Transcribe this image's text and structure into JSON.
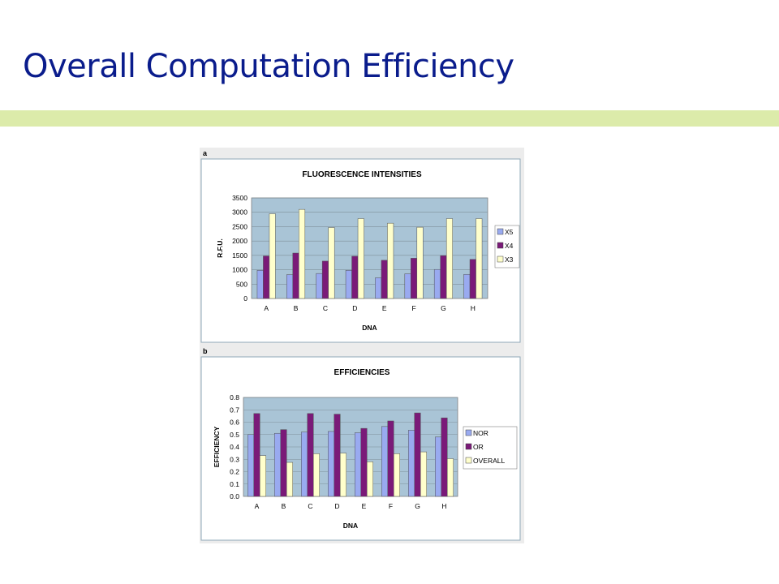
{
  "slide": {
    "title": "Overall Computation Efficiency",
    "title_color": "#0a1c8c",
    "band_color": "#dcebaa"
  },
  "panels": {
    "a": {
      "label": "a"
    },
    "b": {
      "label": "b"
    }
  },
  "chart_data": [
    {
      "type": "bar",
      "panel": "a",
      "title": "FLUORESCENCE INTENSITIES",
      "xlabel": "DNA",
      "ylabel": "R.F.U.",
      "ylim": [
        0,
        3500
      ],
      "yticks": [
        0,
        500,
        1000,
        1500,
        2000,
        2500,
        3000,
        3500
      ],
      "categories": [
        "A",
        "B",
        "C",
        "D",
        "E",
        "F",
        "G",
        "H"
      ],
      "series": [
        {
          "name": "X5",
          "color": "#99aaf0",
          "values": [
            980,
            830,
            870,
            980,
            720,
            860,
            1010,
            840
          ]
        },
        {
          "name": "X4",
          "color": "#7a1a78",
          "values": [
            1480,
            1580,
            1300,
            1470,
            1330,
            1400,
            1490,
            1360
          ]
        },
        {
          "name": "X3",
          "color": "#ffffcc",
          "values": [
            2950,
            3100,
            2470,
            2780,
            2620,
            2480,
            2780,
            2780
          ]
        }
      ],
      "grid": true,
      "legend": "right",
      "plot_bg": "#a9c4d6"
    },
    {
      "type": "bar",
      "panel": "b",
      "title": "EFFICIENCIES",
      "xlabel": "DNA",
      "ylabel": "EFFICIENCY",
      "ylim": [
        0,
        0.8
      ],
      "yticks": [
        0,
        0.1,
        0.2,
        0.3,
        0.4,
        0.5,
        0.6,
        0.7,
        0.8
      ],
      "categories": [
        "A",
        "B",
        "C",
        "D",
        "E",
        "F",
        "G",
        "H"
      ],
      "series": [
        {
          "name": "NOR",
          "color": "#99aaf0",
          "values": [
            0.5,
            0.51,
            0.52,
            0.525,
            0.515,
            0.565,
            0.535,
            0.48
          ]
        },
        {
          "name": "OR",
          "color": "#7a1a78",
          "values": [
            0.67,
            0.54,
            0.67,
            0.665,
            0.55,
            0.61,
            0.675,
            0.635
          ]
        },
        {
          "name": "OVERALL",
          "color": "#ffffcc",
          "values": [
            0.33,
            0.275,
            0.345,
            0.35,
            0.28,
            0.345,
            0.36,
            0.305
          ]
        }
      ],
      "grid": true,
      "legend": "right",
      "plot_bg": "#a9c4d6"
    }
  ]
}
